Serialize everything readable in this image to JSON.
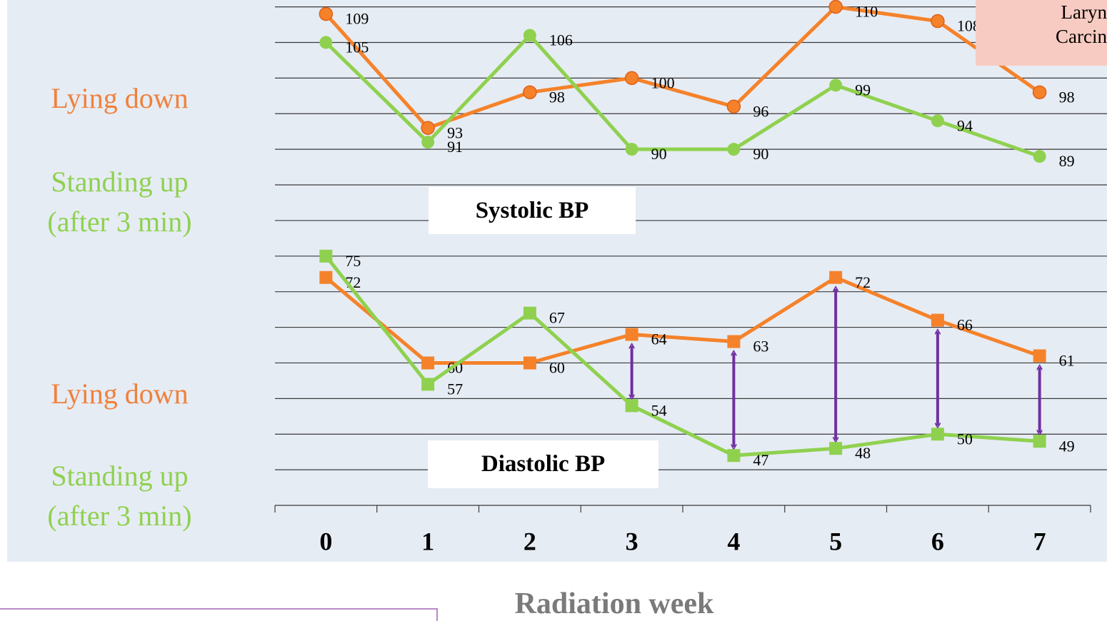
{
  "chart_data": [
    {
      "type": "line",
      "title": "Systolic BP",
      "x_label": "Radiation week",
      "categories": [
        "0",
        "1",
        "2",
        "3",
        "4",
        "5",
        "6",
        "7"
      ],
      "ylim": [
        40,
        110
      ],
      "yticks": [
        45,
        50,
        55,
        60,
        65,
        70,
        75,
        80,
        85,
        90,
        95,
        100,
        105,
        110
      ],
      "grid": true,
      "annotation": "Laryn\nCarcin",
      "series": [
        {
          "name": "Lying down",
          "color": "#f5822a",
          "marker": "circle",
          "values": [
            109,
            93,
            98,
            100,
            96,
            110,
            108,
            98
          ]
        },
        {
          "name": "Standing up\n(after 3 min)",
          "color": "#8fd14f",
          "marker": "circle",
          "values": [
            105,
            91,
            106,
            90,
            90,
            99,
            94,
            89
          ]
        }
      ]
    },
    {
      "type": "line",
      "title": "Diastolic BP",
      "categories": [
        "0",
        "1",
        "2",
        "3",
        "4",
        "5",
        "6",
        "7"
      ],
      "ylim": [
        40,
        110
      ],
      "series": [
        {
          "name": "Lying down",
          "color": "#f5822a",
          "marker": "square",
          "values": [
            72,
            60,
            60,
            64,
            63,
            72,
            66,
            61
          ]
        },
        {
          "name": "Standing up\n(after 3 min)",
          "color": "#8fd14f",
          "marker": "square",
          "values": [
            75,
            57,
            67,
            54,
            47,
            48,
            50,
            49
          ]
        }
      ]
    }
  ]
}
